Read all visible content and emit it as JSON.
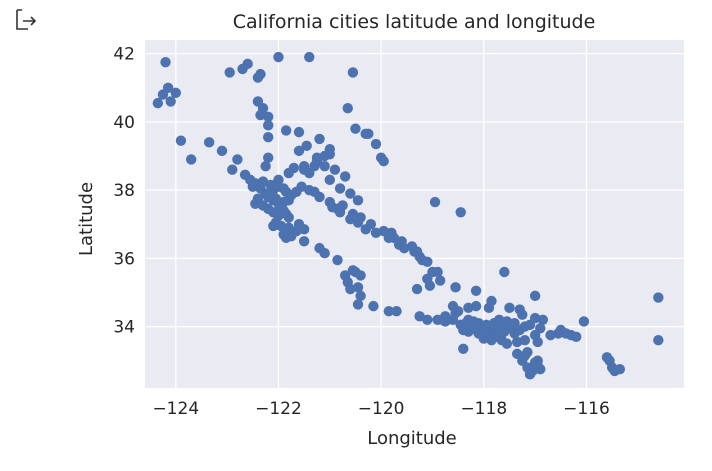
{
  "output_icon": "output-arrow-icon",
  "chart_data": {
    "type": "scatter",
    "title": "California cities latitude and longitude",
    "xlabel": "Longitude",
    "ylabel": "Latitude",
    "xlim": [
      -124.6,
      -114.1
    ],
    "ylim": [
      32.2,
      42.4
    ],
    "xticks": [
      -124,
      -122,
      -120,
      -118,
      -116
    ],
    "yticks": [
      34,
      36,
      38,
      40,
      42
    ],
    "xtick_labels": [
      "−124",
      "−122",
      "−120",
      "−118",
      "−116"
    ],
    "ytick_labels": [
      "34",
      "36",
      "38",
      "40",
      "42"
    ],
    "grid": true,
    "colors": {
      "background": "#eaeaf2",
      "grid": "#ffffff",
      "marker": "#4c72b0",
      "text": "#262626"
    },
    "series": [
      {
        "points": [
          [
            -124.2,
            41.75
          ],
          [
            -124.15,
            41.0
          ],
          [
            -124.0,
            40.85
          ],
          [
            -124.35,
            40.55
          ],
          [
            -124.1,
            40.6
          ],
          [
            -124.25,
            40.8
          ],
          [
            -123.9,
            39.45
          ],
          [
            -123.7,
            38.9
          ],
          [
            -123.35,
            39.4
          ],
          [
            -123.1,
            39.15
          ],
          [
            -122.8,
            38.9
          ],
          [
            -122.9,
            38.6
          ],
          [
            -122.65,
            38.45
          ],
          [
            -122.55,
            38.3
          ],
          [
            -122.45,
            38.2
          ],
          [
            -122.35,
            38.05
          ],
          [
            -122.25,
            37.9
          ],
          [
            -122.2,
            37.8
          ],
          [
            -122.1,
            37.7
          ],
          [
            -122.0,
            37.6
          ],
          [
            -121.95,
            37.5
          ],
          [
            -121.9,
            37.4
          ],
          [
            -121.85,
            37.3
          ],
          [
            -121.8,
            37.2
          ],
          [
            -122.4,
            37.75
          ],
          [
            -122.45,
            37.6
          ],
          [
            -122.3,
            37.55
          ],
          [
            -122.2,
            37.45
          ],
          [
            -122.1,
            37.35
          ],
          [
            -122.0,
            37.25
          ],
          [
            -122.05,
            37.05
          ],
          [
            -121.95,
            36.95
          ],
          [
            -121.8,
            36.9
          ],
          [
            -121.65,
            36.8
          ],
          [
            -121.75,
            36.65
          ],
          [
            -121.85,
            36.6
          ],
          [
            -121.6,
            37.0
          ],
          [
            -121.5,
            36.85
          ],
          [
            -122.0,
            38.3
          ],
          [
            -121.8,
            38.5
          ],
          [
            -121.7,
            38.65
          ],
          [
            -121.5,
            38.6
          ],
          [
            -121.4,
            38.5
          ],
          [
            -121.3,
            38.7
          ],
          [
            -121.25,
            38.85
          ],
          [
            -121.1,
            39.0
          ],
          [
            -121.0,
            39.2
          ],
          [
            -121.2,
            39.5
          ],
          [
            -121.45,
            39.3
          ],
          [
            -121.6,
            39.7
          ],
          [
            -121.85,
            39.75
          ],
          [
            -122.2,
            39.9
          ],
          [
            -122.2,
            40.15
          ],
          [
            -122.3,
            40.4
          ],
          [
            -122.4,
            40.6
          ],
          [
            -122.35,
            40.2
          ],
          [
            -122.2,
            39.55
          ],
          [
            -122.2,
            38.95
          ],
          [
            -122.25,
            38.7
          ],
          [
            -121.6,
            39.15
          ],
          [
            -121.0,
            38.3
          ],
          [
            -120.8,
            38.05
          ],
          [
            -120.6,
            37.9
          ],
          [
            -120.45,
            37.7
          ],
          [
            -120.75,
            37.55
          ],
          [
            -120.85,
            37.45
          ],
          [
            -120.55,
            37.3
          ],
          [
            -120.4,
            37.2
          ],
          [
            -120.2,
            37.0
          ],
          [
            -119.95,
            36.8
          ],
          [
            -119.8,
            36.75
          ],
          [
            -119.75,
            36.6
          ],
          [
            -119.6,
            36.5
          ],
          [
            -119.4,
            36.35
          ],
          [
            -119.3,
            36.2
          ],
          [
            -119.25,
            36.05
          ],
          [
            -119.1,
            35.9
          ],
          [
            -119.0,
            35.6
          ],
          [
            -119.1,
            35.4
          ],
          [
            -119.05,
            35.2
          ],
          [
            -118.85,
            35.35
          ],
          [
            -118.55,
            35.15
          ],
          [
            -118.15,
            35.05
          ],
          [
            -117.6,
            35.6
          ],
          [
            -118.45,
            37.35
          ],
          [
            -118.95,
            37.65
          ],
          [
            -120.4,
            34.9
          ],
          [
            -120.6,
            35.1
          ],
          [
            -120.65,
            35.3
          ],
          [
            -120.7,
            35.5
          ],
          [
            -120.5,
            35.6
          ],
          [
            -120.45,
            35.15
          ],
          [
            -120.15,
            34.6
          ],
          [
            -119.7,
            34.45
          ],
          [
            -119.25,
            34.3
          ],
          [
            -119.1,
            34.2
          ],
          [
            -118.9,
            34.2
          ],
          [
            -118.75,
            34.15
          ],
          [
            -118.6,
            34.2
          ],
          [
            -118.45,
            34.05
          ],
          [
            -118.35,
            34.0
          ],
          [
            -118.25,
            33.95
          ],
          [
            -118.15,
            33.9
          ],
          [
            -118.05,
            33.85
          ],
          [
            -117.95,
            33.8
          ],
          [
            -117.85,
            33.75
          ],
          [
            -117.75,
            33.7
          ],
          [
            -117.65,
            33.6
          ],
          [
            -117.55,
            33.5
          ],
          [
            -117.35,
            33.2
          ],
          [
            -117.25,
            33.0
          ],
          [
            -117.15,
            32.8
          ],
          [
            -117.05,
            32.7
          ],
          [
            -117.1,
            32.6
          ],
          [
            -116.95,
            32.85
          ],
          [
            -117.3,
            33.9
          ],
          [
            -117.2,
            34.0
          ],
          [
            -117.1,
            34.05
          ],
          [
            -117.4,
            34.1
          ],
          [
            -117.6,
            34.05
          ],
          [
            -117.8,
            34.1
          ],
          [
            -117.95,
            34.05
          ],
          [
            -118.1,
            34.1
          ],
          [
            -118.2,
            34.15
          ],
          [
            -118.3,
            34.2
          ],
          [
            -118.5,
            34.45
          ],
          [
            -118.6,
            34.6
          ],
          [
            -118.15,
            34.6
          ],
          [
            -117.9,
            34.55
          ],
          [
            -117.3,
            34.5
          ],
          [
            -117.0,
            34.9
          ],
          [
            -116.85,
            34.2
          ],
          [
            -116.5,
            33.9
          ],
          [
            -116.4,
            33.8
          ],
          [
            -116.3,
            33.75
          ],
          [
            -116.2,
            33.7
          ],
          [
            -116.05,
            34.15
          ],
          [
            -115.55,
            33.0
          ],
          [
            -115.5,
            32.8
          ],
          [
            -115.45,
            32.7
          ],
          [
            -115.35,
            32.75
          ],
          [
            -115.6,
            33.1
          ],
          [
            -114.6,
            34.85
          ],
          [
            -114.6,
            33.6
          ],
          [
            -118.4,
            33.35
          ],
          [
            -117.2,
            33.6
          ],
          [
            -117.4,
            33.8
          ],
          [
            -117.0,
            33.75
          ],
          [
            -116.95,
            33.55
          ],
          [
            -117.15,
            33.25
          ],
          [
            -119.85,
            34.45
          ],
          [
            -119.3,
            35.1
          ],
          [
            -118.8,
            34.2
          ],
          [
            -120.45,
            34.65
          ],
          [
            -120.3,
            39.65
          ],
          [
            -120.1,
            39.35
          ],
          [
            -120.0,
            38.95
          ],
          [
            -119.95,
            38.85
          ],
          [
            -121.4,
            41.9
          ],
          [
            -122.0,
            41.9
          ],
          [
            -122.6,
            41.7
          ],
          [
            -122.95,
            41.45
          ],
          [
            -122.7,
            41.55
          ],
          [
            -122.4,
            41.3
          ],
          [
            -122.35,
            41.4
          ],
          [
            -120.55,
            41.45
          ],
          [
            -120.65,
            40.4
          ],
          [
            -120.5,
            39.8
          ],
          [
            -120.25,
            39.65
          ],
          [
            -122.1,
            38.0
          ],
          [
            -122.15,
            37.85
          ],
          [
            -122.05,
            37.75
          ],
          [
            -121.9,
            37.65
          ],
          [
            -121.8,
            37.7
          ],
          [
            -121.75,
            37.85
          ],
          [
            -121.65,
            37.95
          ],
          [
            -121.55,
            38.1
          ],
          [
            -121.4,
            38.0
          ],
          [
            -121.3,
            37.95
          ],
          [
            -121.2,
            37.8
          ],
          [
            -121.0,
            37.65
          ],
          [
            -120.95,
            37.5
          ],
          [
            -120.8,
            37.35
          ],
          [
            -120.6,
            37.15
          ],
          [
            -120.45,
            37.05
          ],
          [
            -120.3,
            36.85
          ],
          [
            -120.1,
            36.75
          ],
          [
            -119.85,
            36.6
          ],
          [
            -119.65,
            36.4
          ],
          [
            -119.55,
            36.3
          ],
          [
            -119.35,
            36.2
          ],
          [
            -119.2,
            35.95
          ],
          [
            -118.9,
            35.6
          ],
          [
            -120.7,
            38.4
          ],
          [
            -120.9,
            38.6
          ],
          [
            -121.1,
            38.7
          ],
          [
            -121.5,
            38.7
          ],
          [
            -121.25,
            38.95
          ],
          [
            -121.0,
            39.05
          ],
          [
            -122.5,
            38.1
          ],
          [
            -122.3,
            38.25
          ],
          [
            -122.15,
            38.15
          ],
          [
            -122.0,
            38.1
          ],
          [
            -121.9,
            38.05
          ],
          [
            -121.85,
            37.95
          ],
          [
            -122.1,
            36.95
          ],
          [
            -121.9,
            36.7
          ],
          [
            -121.5,
            36.5
          ],
          [
            -121.2,
            36.3
          ],
          [
            -121.1,
            36.15
          ],
          [
            -120.85,
            35.95
          ],
          [
            -120.55,
            35.65
          ],
          [
            -120.4,
            35.5
          ],
          [
            -118.75,
            34.3
          ],
          [
            -118.55,
            34.4
          ],
          [
            -118.3,
            34.55
          ],
          [
            -117.85,
            34.75
          ],
          [
            -117.5,
            34.55
          ],
          [
            -117.25,
            34.35
          ],
          [
            -117.0,
            34.25
          ],
          [
            -116.9,
            33.95
          ],
          [
            -116.7,
            33.75
          ],
          [
            -116.55,
            33.8
          ],
          [
            -117.7,
            34.2
          ],
          [
            -117.55,
            34.15
          ],
          [
            -117.5,
            33.95
          ],
          [
            -117.6,
            33.85
          ],
          [
            -117.7,
            33.75
          ],
          [
            -117.85,
            33.6
          ],
          [
            -118.0,
            33.65
          ],
          [
            -118.1,
            33.8
          ],
          [
            -118.3,
            33.85
          ],
          [
            -118.4,
            33.9
          ],
          [
            -118.35,
            34.1
          ],
          [
            -118.15,
            34.0
          ],
          [
            -118.0,
            34.0
          ],
          [
            -117.9,
            33.9
          ],
          [
            -117.75,
            33.95
          ],
          [
            -117.35,
            33.55
          ],
          [
            -117.2,
            33.15
          ],
          [
            -117.0,
            32.95
          ],
          [
            -116.9,
            32.75
          ],
          [
            -116.95,
            33.0
          ]
        ]
      }
    ]
  }
}
